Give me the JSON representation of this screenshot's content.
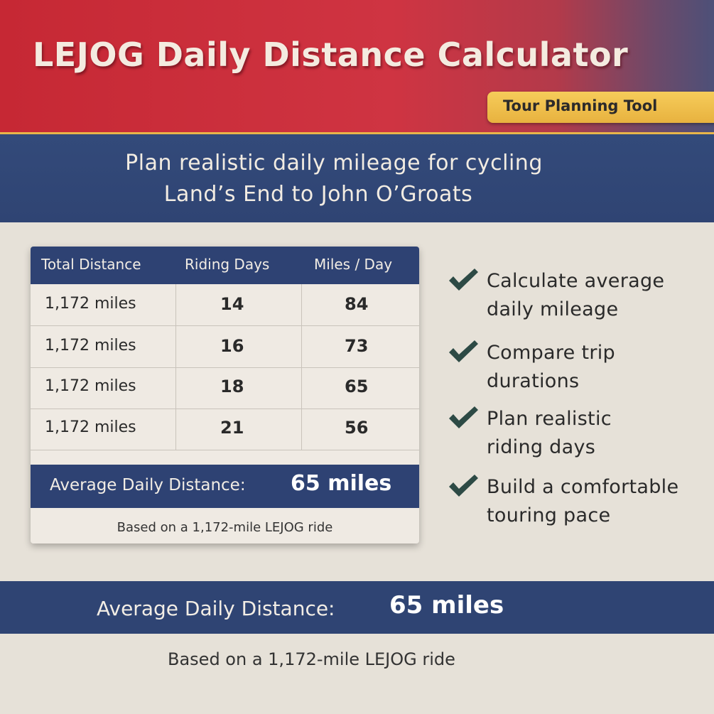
{
  "header": {
    "title": "LEJOG Daily Distance Calculator",
    "tag": "Tour Planning Tool",
    "subtitle_line1": "Plan realistic daily mileage for cycling",
    "subtitle_line2": "Land’s End to John O’Groats"
  },
  "table": {
    "columns": [
      "Total Distance",
      "Riding Days",
      "Miles / Day"
    ],
    "rows": [
      {
        "distance": "1,172 miles",
        "days": "14",
        "miles_per_day": "84"
      },
      {
        "distance": "1,172 miles",
        "days": "16",
        "miles_per_day": "73"
      },
      {
        "distance": "1,172 miles",
        "days": "18",
        "miles_per_day": "65"
      },
      {
        "distance": "1,172 miles",
        "days": "21",
        "miles_per_day": "56"
      }
    ],
    "average_label": "Average Daily Distance:",
    "average_value": "65 miles",
    "note": "Based on a 1,172-mile LEJOG ride"
  },
  "features": [
    {
      "line1": "Calculate average",
      "line2": "daily mileage"
    },
    {
      "line1": "Compare trip",
      "line2": "durations"
    },
    {
      "line1": "Plan realistic",
      "line2": "riding days"
    },
    {
      "line1": "Build a comfortable",
      "line2": "touring pace"
    }
  ],
  "footer": {
    "average_label": "Average Daily Distance:",
    "average_value": "65 miles",
    "note": "Based on a 1,172-mile LEJOG ride"
  },
  "colors": {
    "red": "#c62834",
    "navy": "#2e4273",
    "gold": "#e8b23f",
    "check": "#2d4a45"
  },
  "icons": [
    "checkmark-icon"
  ]
}
